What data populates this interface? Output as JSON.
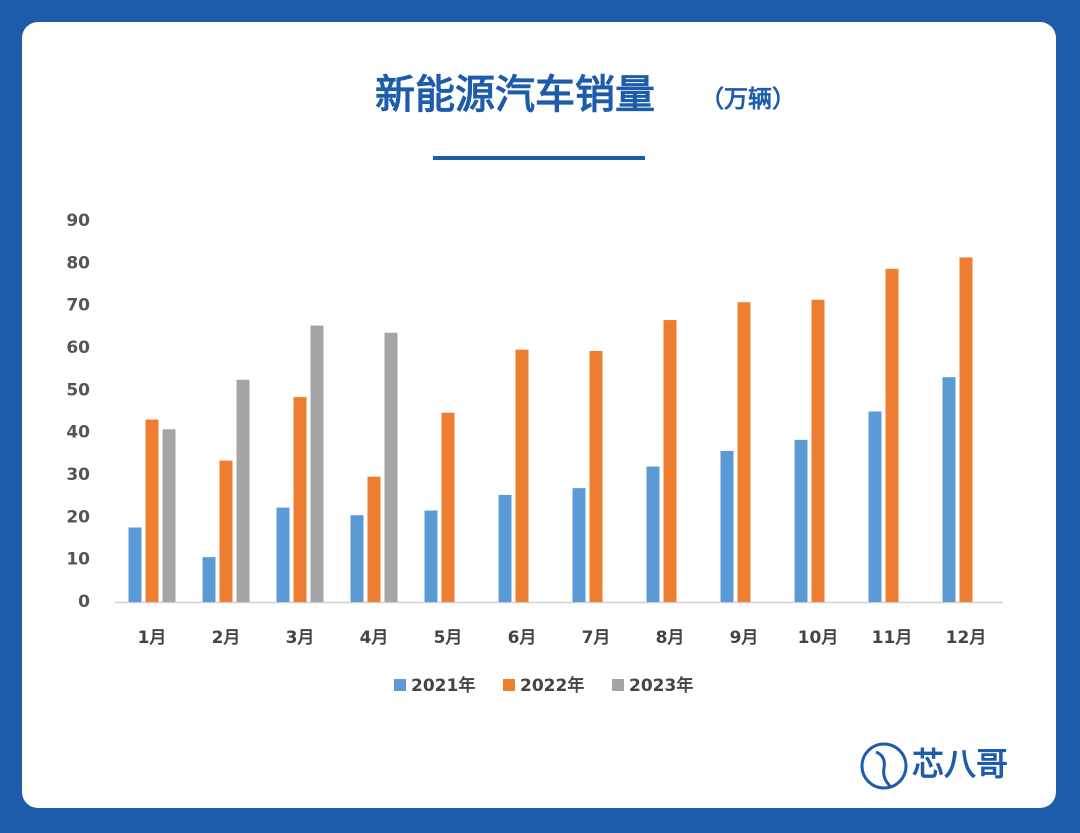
{
  "chart_data": {
    "type": "bar",
    "title": "新能源汽车销量",
    "title_unit": "（万辆）",
    "categories": [
      "1月",
      "2月",
      "3月",
      "4月",
      "5月",
      "6月",
      "7月",
      "8月",
      "9月",
      "10月",
      "11月",
      "12月"
    ],
    "series": [
      {
        "name": "2021年",
        "color": "#5b9bd5",
        "values": [
          17.6,
          10.6,
          22.3,
          20.5,
          21.6,
          25.3,
          26.9,
          32.0,
          35.7,
          38.3,
          45.0,
          53.1
        ]
      },
      {
        "name": "2022年",
        "color": "#ed7d31",
        "values": [
          43.1,
          33.4,
          48.4,
          29.6,
          44.7,
          59.6,
          59.3,
          66.6,
          70.8,
          71.4,
          78.7,
          81.4
        ]
      },
      {
        "name": "2023年",
        "color": "#a5a5a5",
        "values": [
          40.8,
          52.5,
          65.3,
          63.6,
          null,
          null,
          null,
          null,
          null,
          null,
          null,
          null
        ]
      }
    ],
    "ylim": [
      0,
      90
    ],
    "yticks": [
      0,
      10,
      20,
      30,
      40,
      50,
      60,
      70,
      80,
      90
    ],
    "grid": false,
    "legend": "bottom",
    "logo_text": "芯八哥"
  }
}
